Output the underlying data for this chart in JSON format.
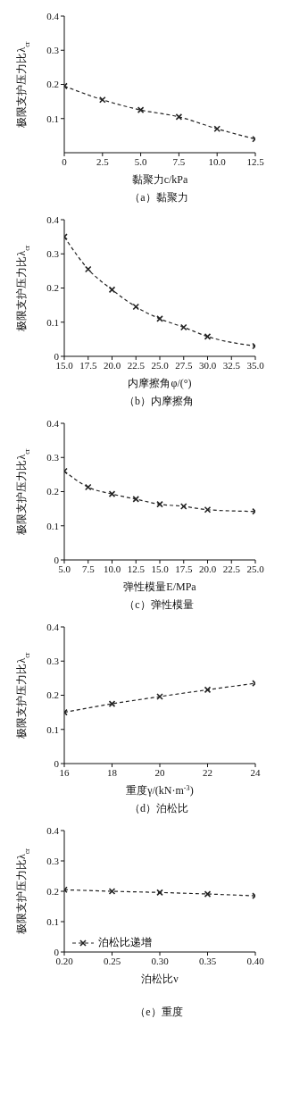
{
  "chart_data": [
    {
      "type": "line",
      "title": "（a）黏聚力",
      "xlabel": "黏聚力c/kPa",
      "ylabel": "极限支护压力比λ$_{cr}$",
      "x": [
        0,
        2.5,
        5,
        7.5,
        10,
        12.5
      ],
      "xlim": [
        0,
        12.5
      ],
      "xticks": [
        0,
        2.5,
        {
          "value": 5,
          "label": "5.0"
        },
        7.5,
        {
          "value": 10,
          "label": "10.0"
        },
        12.5
      ],
      "ylim": [
        0,
        0.4
      ],
      "yticks": [
        0.1,
        0.2,
        0.3,
        0.4
      ],
      "marker": "cross",
      "line_style": "dashed",
      "legend": false,
      "series": [
        {
          "color": "#222222",
          "values": [
            0.195,
            0.155,
            0.125,
            0.105,
            0.07,
            0.04
          ]
        }
      ]
    },
    {
      "type": "line",
      "title": "（b）内摩擦角",
      "xlabel": "内摩擦角φ/(°)",
      "ylabel": "极限支护压力比λ$_{cr}$",
      "x": [
        15,
        17.5,
        20,
        22.5,
        25,
        27.5,
        30,
        35
      ],
      "xlim": [
        15,
        35
      ],
      "xticks": [
        {
          "value": 15,
          "label": "15.0"
        },
        17.5,
        {
          "value": 20,
          "label": "20.0"
        },
        22.5,
        {
          "value": 25,
          "label": "25.0"
        },
        27.5,
        {
          "value": 30,
          "label": "30.0"
        },
        32.5,
        {
          "value": 35,
          "label": "35.0"
        }
      ],
      "ylim": [
        0,
        0.4
      ],
      "yticks": [
        0,
        0.1,
        0.2,
        0.3,
        0.4
      ],
      "marker": "cross",
      "line_style": "dashed",
      "legend": false,
      "series": [
        {
          "color": "#222222",
          "values": [
            0.35,
            0.255,
            0.195,
            0.145,
            0.11,
            0.085,
            0.058,
            0.03
          ]
        }
      ]
    },
    {
      "type": "line",
      "title": "（c）弹性模量",
      "xlabel": "弹性模量E/MPa",
      "ylabel": "极限支护压力比λ$_{cr}$",
      "x": [
        5,
        7.5,
        10,
        12.5,
        15,
        17.5,
        20,
        25
      ],
      "xlim": [
        5,
        25
      ],
      "xticks": [
        {
          "value": 5,
          "label": "5.0"
        },
        7.5,
        {
          "value": 10,
          "label": "10.0"
        },
        12.5,
        {
          "value": 15,
          "label": "15.0"
        },
        17.5,
        {
          "value": 20,
          "label": "20.0"
        },
        22.5,
        {
          "value": 25,
          "label": "25.0"
        }
      ],
      "ylim": [
        0,
        0.4
      ],
      "yticks": [
        0,
        0.1,
        0.2,
        0.3,
        0.4
      ],
      "marker": "cross",
      "line_style": "dashed",
      "legend": false,
      "series": [
        {
          "color": "#222222",
          "values": [
            0.26,
            0.213,
            0.193,
            0.178,
            0.163,
            0.157,
            0.147,
            0.142
          ]
        }
      ]
    },
    {
      "type": "line",
      "title": "（d）泊松比",
      "xlabel": "重度γ/(kN·m$^{-3}$)",
      "ylabel": "极限支护压力比λ$_{cr}$",
      "x": [
        16,
        18,
        20,
        22,
        24
      ],
      "xlim": [
        16,
        24
      ],
      "xticks": [
        16,
        18,
        20,
        22,
        24
      ],
      "ylim": [
        0,
        0.4
      ],
      "yticks": [
        0,
        0.1,
        0.2,
        0.3,
        0.4
      ],
      "marker": "cross",
      "line_style": "dashed",
      "legend": false,
      "series": [
        {
          "color": "#222222",
          "values": [
            0.15,
            0.175,
            0.196,
            0.216,
            0.235
          ]
        }
      ]
    },
    {
      "type": "line",
      "title": "（e）重度",
      "xlabel": "泊松比ν",
      "ylabel": "极限支护压力比λ$_{cr}$",
      "x": [
        0.2,
        0.25,
        0.3,
        0.35,
        0.4
      ],
      "xlim": [
        0.2,
        0.4
      ],
      "xticks": [
        {
          "value": 0.2,
          "label": "0.20"
        },
        0.25,
        {
          "value": 0.3,
          "label": "0.30"
        },
        0.35,
        {
          "value": 0.4,
          "label": "0.40"
        }
      ],
      "ylim": [
        0,
        0.4
      ],
      "yticks": [
        0,
        0.1,
        0.2,
        0.3,
        0.4
      ],
      "marker": "cross",
      "line_style": "dashed",
      "legend": "bottom left",
      "series": [
        {
          "name": "泊松比递增",
          "color": "#222222",
          "values": [
            0.205,
            0.2,
            0.196,
            0.191,
            0.185
          ]
        }
      ]
    }
  ]
}
